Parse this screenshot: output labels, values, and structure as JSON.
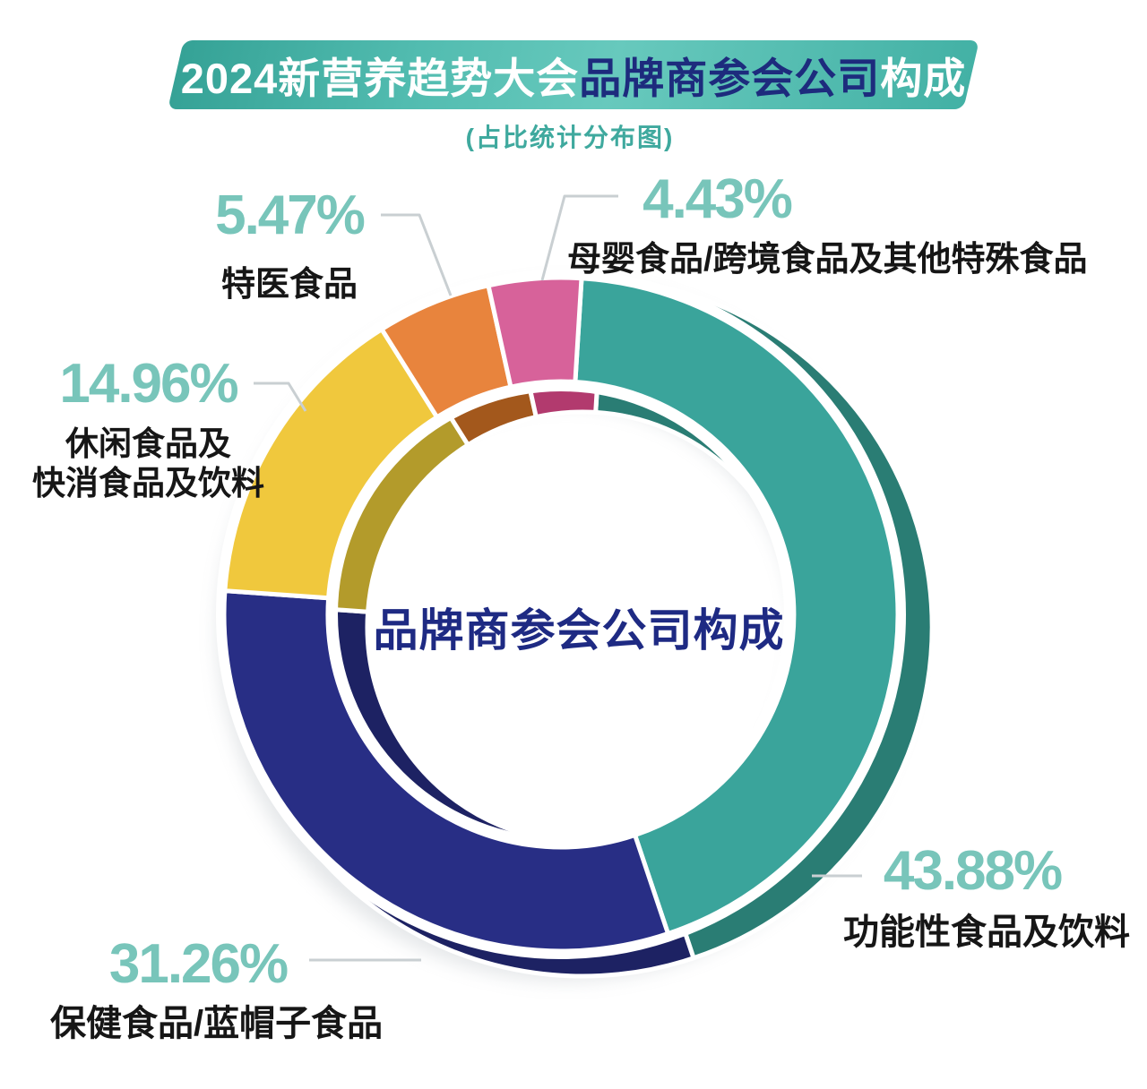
{
  "banner": {
    "title_part1": "2024新营养趋势大会",
    "title_part2": "品牌商参会公司",
    "title_part3": "构成",
    "bg_color": "#4db8ac",
    "highlight_color": "#1d2b7d"
  },
  "subtitle": "(占比统计分布图)",
  "center_label": "品牌商参会公司构成",
  "chart_data": {
    "type": "pie",
    "subtype": "donut",
    "title": "品牌商参会公司构成",
    "start_angle_deg": 3.5,
    "direction": "clockwise",
    "legend_position": "callouts",
    "segments": [
      {
        "label": "功能性食品及饮料",
        "value": 43.88,
        "display": "43.88%",
        "color": "#3aa49b",
        "shadow_color": "#2a7d74"
      },
      {
        "label": "保健食品/蓝帽子食品",
        "value": 31.26,
        "display": "31.26%",
        "color": "#282e85",
        "shadow_color": "#1d2263"
      },
      {
        "label": "休闲食品及快消食品及饮料",
        "value": 14.96,
        "display": "14.96%",
        "color": "#f0c83d",
        "shadow_color": "#b39b2b"
      },
      {
        "label": "特医食品",
        "value": 5.47,
        "display": "5.47%",
        "color": "#e8843d",
        "shadow_color": "#a3581c"
      },
      {
        "label": "母婴食品/跨境食品及其他特殊食品",
        "value": 4.43,
        "display": "4.43%",
        "color": "#d7629a",
        "shadow_color": "#b23a6e"
      }
    ]
  },
  "callouts": [
    {
      "pct": "5.47%",
      "lines": [
        "特医食品"
      ]
    },
    {
      "pct": "4.43%",
      "lines": [
        "母婴食品/跨境食品及其他特殊食品"
      ]
    },
    {
      "pct": "14.96%",
      "lines": [
        "休闲食品及",
        "快消食品及饮料"
      ]
    },
    {
      "pct": "43.88%",
      "lines": [
        "功能性食品及饮料"
      ]
    },
    {
      "pct": "31.26%",
      "lines": [
        "保健食品/蓝帽子食品"
      ]
    }
  ],
  "colors": {
    "percent_text": "#78c5ba",
    "label_text": "#161616",
    "center_label_text": "#1e2a83",
    "subtitle_text": "#3fa99e",
    "leader_line": "#c9cfd2"
  }
}
